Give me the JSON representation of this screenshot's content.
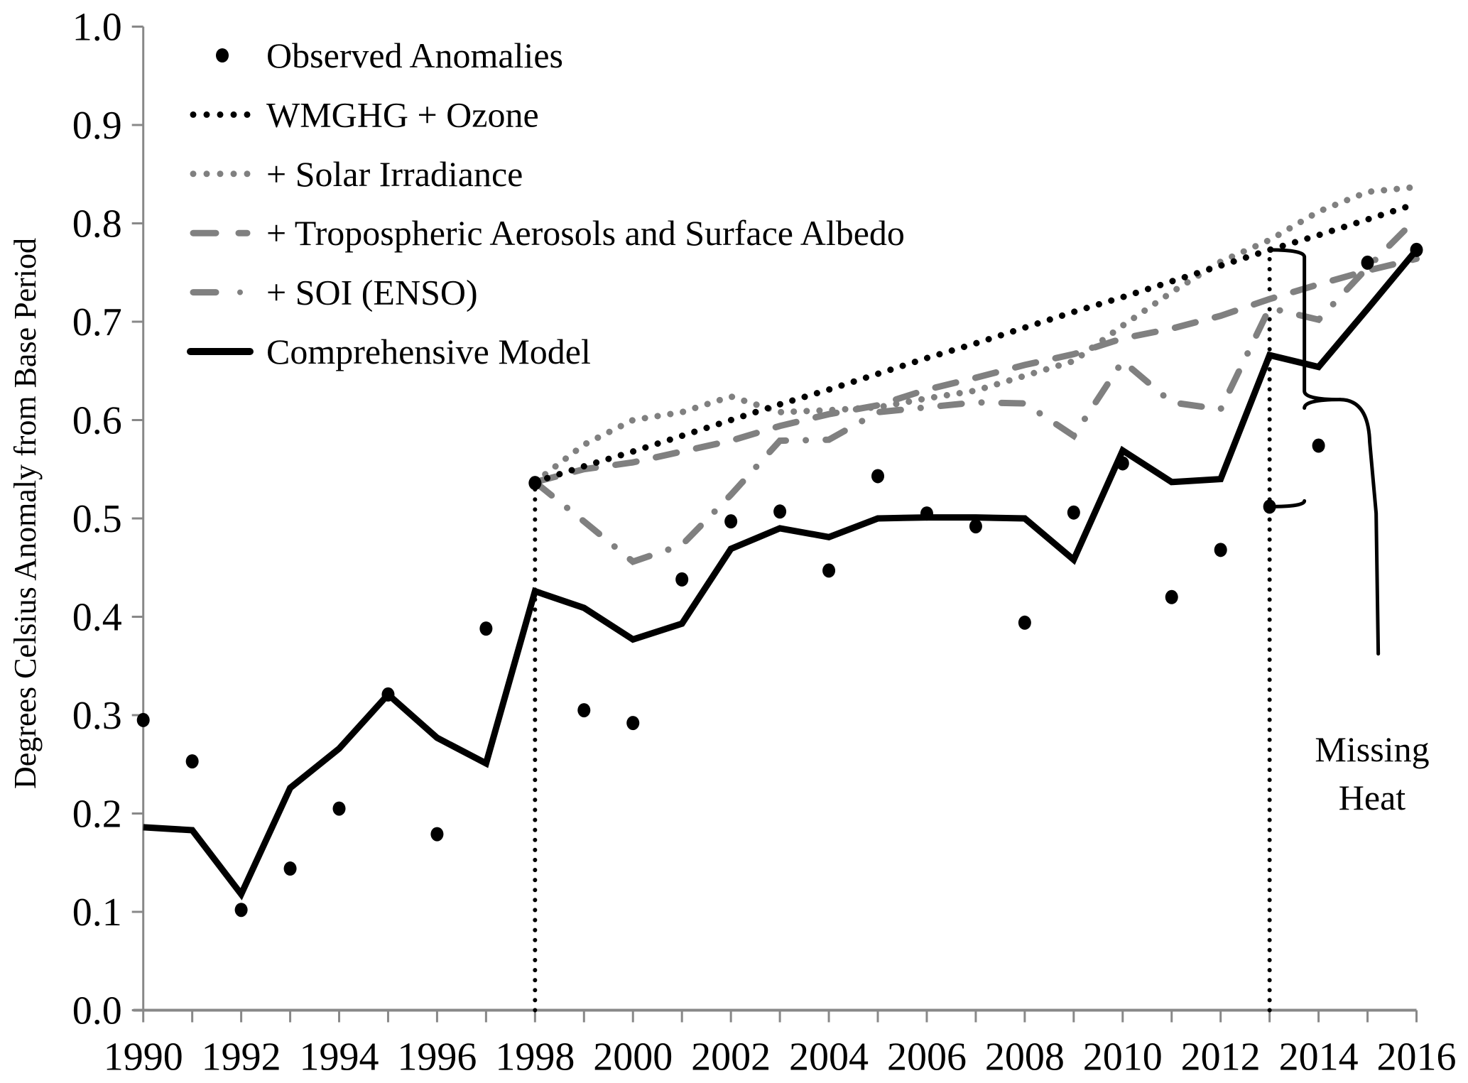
{
  "chart_data": {
    "type": "line",
    "title": "",
    "xlabel": "",
    "ylabel": "Degrees Celsius Anomaly from Base Period",
    "xlim": [
      1990,
      2016
    ],
    "ylim": [
      0.0,
      1.0
    ],
    "grid": false,
    "x_ticks": [
      1990,
      1991,
      1992,
      1993,
      1994,
      1995,
      1996,
      1997,
      1998,
      1999,
      2000,
      2001,
      2002,
      2003,
      2004,
      2005,
      2006,
      2007,
      2008,
      2009,
      2010,
      2011,
      2012,
      2013,
      2014,
      2015,
      2016
    ],
    "x_tick_labels": [
      "1990",
      "1992",
      "1994",
      "1996",
      "1998",
      "2000",
      "2002",
      "2004",
      "2006",
      "2008",
      "2010",
      "2012",
      "2014",
      "2016"
    ],
    "y_tick_labels": [
      "0.0",
      "0.1",
      "0.2",
      "0.3",
      "0.4",
      "0.5",
      "0.6",
      "0.7",
      "0.8",
      "0.9",
      "1.0"
    ],
    "legend_position": "top-left",
    "series": [
      {
        "name": "Observed Anomalies",
        "style": "markers",
        "color": "#000000",
        "x": [
          1990,
          1991,
          1992,
          1993,
          1994,
          1995,
          1996,
          1997,
          1998,
          1999,
          2000,
          2001,
          2002,
          2003,
          2004,
          2005,
          2006,
          2007,
          2008,
          2009,
          2010,
          2011,
          2012,
          2013,
          2014,
          2015,
          2016
        ],
        "values": [
          0.295,
          0.253,
          0.102,
          0.144,
          0.205,
          0.321,
          0.179,
          0.388,
          0.536,
          0.305,
          0.292,
          0.438,
          0.497,
          0.507,
          0.447,
          0.543,
          0.505,
          0.492,
          0.394,
          0.506,
          0.556,
          0.42,
          0.468,
          0.512,
          0.574,
          0.76,
          0.773
        ]
      },
      {
        "name": "WMGHG + Ozone",
        "style": "dotted",
        "color": "#000000",
        "x": [
          1998,
          1999,
          2000,
          2001,
          2002,
          2003,
          2004,
          2005,
          2006,
          2007,
          2008,
          2009,
          2010,
          2011,
          2012,
          2013,
          2014,
          2015,
          2016
        ],
        "values": [
          0.537,
          0.553,
          0.568,
          0.584,
          0.6,
          0.616,
          0.631,
          0.647,
          0.663,
          0.678,
          0.694,
          0.71,
          0.725,
          0.741,
          0.757,
          0.773,
          0.788,
          0.804,
          0.82
        ]
      },
      {
        "name": "+ Solar Irradiance",
        "style": "dotted",
        "color": "#808080",
        "x": [
          1998,
          1999,
          2000,
          2001,
          2002,
          2003,
          2004,
          2005,
          2006,
          2007,
          2008,
          2009,
          2010,
          2011,
          2012,
          2013,
          2014,
          2015,
          2016
        ],
        "values": [
          0.537,
          0.575,
          0.6,
          0.608,
          0.624,
          0.608,
          0.61,
          0.613,
          0.622,
          0.63,
          0.645,
          0.66,
          0.696,
          0.73,
          0.761,
          0.783,
          0.812,
          0.832,
          0.837
        ]
      },
      {
        "name": "+ Tropospheric Aerosols and Surface Albedo",
        "style": "dashed",
        "color": "#808080",
        "x": [
          1998,
          1999,
          2000,
          2001,
          2002,
          2003,
          2004,
          2005,
          2006,
          2007,
          2008,
          2009,
          2010,
          2011,
          2012,
          2013,
          2014,
          2015,
          2016
        ],
        "values": [
          0.537,
          0.55,
          0.557,
          0.568,
          0.579,
          0.594,
          0.606,
          0.615,
          0.631,
          0.643,
          0.656,
          0.667,
          0.683,
          0.693,
          0.706,
          0.723,
          0.738,
          0.752,
          0.764
        ]
      },
      {
        "name": "+ SOI (ENSO)",
        "style": "dash-dot",
        "color": "#808080",
        "x": [
          1998,
          1999,
          2000,
          2001,
          2002,
          2003,
          2004,
          2005,
          2006,
          2007,
          2008,
          2009,
          2010,
          2011,
          2012,
          2013,
          2014,
          2015,
          2016
        ],
        "values": [
          0.537,
          0.497,
          0.456,
          0.473,
          0.524,
          0.579,
          0.58,
          0.608,
          0.613,
          0.618,
          0.617,
          0.584,
          0.66,
          0.618,
          0.611,
          0.714,
          0.702,
          0.755,
          0.805
        ]
      },
      {
        "name": "Comprehensive Model",
        "style": "solid",
        "color": "#000000",
        "x": [
          1990,
          1991,
          1992,
          1993,
          1994,
          1995,
          1996,
          1997,
          1998,
          1999,
          2000,
          2001,
          2002,
          2003,
          2004,
          2005,
          2006,
          2007,
          2008,
          2009,
          2010,
          2011,
          2012,
          2013,
          2014,
          2015,
          2016
        ],
        "values": [
          0.186,
          0.183,
          0.118,
          0.226,
          0.266,
          0.321,
          0.277,
          0.251,
          0.426,
          0.409,
          0.377,
          0.393,
          0.469,
          0.49,
          0.481,
          0.5,
          0.501,
          0.501,
          0.5,
          0.458,
          0.569,
          0.537,
          0.54,
          0.666,
          0.654,
          0.713,
          0.773
        ]
      }
    ],
    "reference_lines": [
      {
        "name": "1998 marker",
        "x": 1998,
        "from": 0.0,
        "to": 0.536,
        "style": "dotted"
      },
      {
        "name": "2013 marker",
        "x": 2013,
        "from": 0.0,
        "to": 0.773,
        "style": "dotted"
      }
    ],
    "annotations": [
      {
        "text_lines": [
          "Missing",
          "Heat"
        ],
        "bracket_year": 2013,
        "bracket_from": 0.512,
        "bracket_to": 0.773
      }
    ]
  },
  "colors": {
    "axis": "#888888",
    "black": "#000000",
    "gray": "#808080"
  }
}
